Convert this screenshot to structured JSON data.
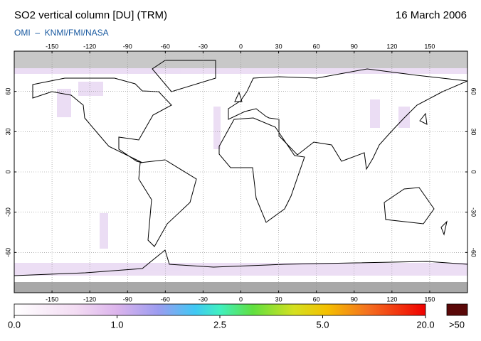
{
  "header": {
    "title": "SO2 vertical column [DU] (TRM)",
    "date": "16 March 2006",
    "source": "OMI  –  KNMI/FMI/NASA"
  },
  "map": {
    "lonlim": [
      -180,
      180
    ],
    "latlim": [
      -90,
      90
    ],
    "lonticks": [
      -150,
      -120,
      -90,
      -60,
      -30,
      0,
      30,
      60,
      90,
      120,
      150
    ],
    "latticks": [
      -60,
      -30,
      0,
      30,
      60
    ],
    "grid": true
  },
  "colorbar": {
    "ticks": [
      {
        "value": 0,
        "label": "0.0"
      },
      {
        "value": 1,
        "label": "1.0"
      },
      {
        "value": 2.5,
        "label": "2.5"
      },
      {
        "value": 5,
        "label": "5.0"
      },
      {
        "value": 20,
        "label": "20.0"
      }
    ],
    "overflow_label": ">50"
  }
}
